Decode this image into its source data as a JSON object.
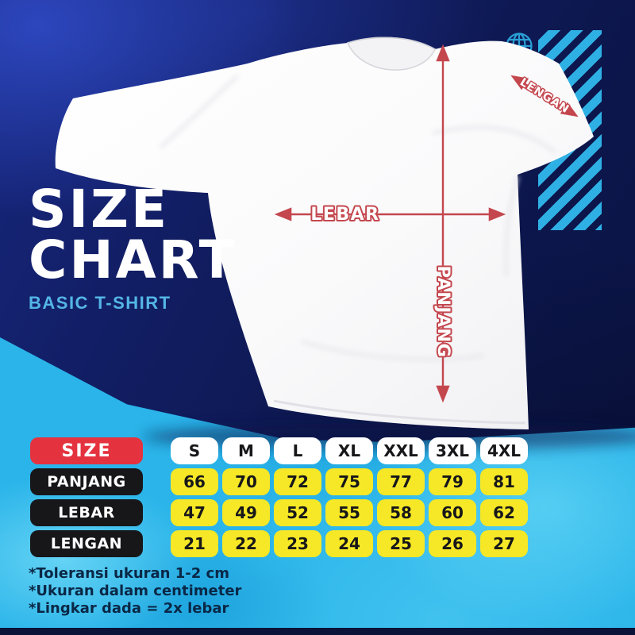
{
  "poster": {
    "title_line1": "SIZE",
    "title_line2": "CHART",
    "subtitle": "BASIC T-SHIRT"
  },
  "measurements": {
    "width_label": "LEBAR",
    "length_label": "PANJANG",
    "sleeve_label": "LENGAN"
  },
  "size_table": {
    "header_label": "SIZE",
    "sizes": [
      "S",
      "M",
      "L",
      "XL",
      "XXL",
      "3XL",
      "4XL"
    ],
    "rows": [
      {
        "label": "PANJANG",
        "values": [
          "66",
          "70",
          "72",
          "75",
          "77",
          "79",
          "81"
        ]
      },
      {
        "label": "LEBAR",
        "values": [
          "47",
          "49",
          "52",
          "55",
          "58",
          "60",
          "62"
        ]
      },
      {
        "label": "LENGAN",
        "values": [
          "21",
          "22",
          "23",
          "24",
          "25",
          "26",
          "27"
        ]
      }
    ]
  },
  "notes": [
    "*Toleransi ukuran 1-2 cm",
    "*Ukuran dalam centimeter",
    "*Lingkar dada = 2x lebar"
  ],
  "icons": [
    {
      "name": "globe-icon",
      "shape": "wireframe globe circle with meridians"
    }
  ],
  "colors": {
    "navy_background": "#0e1950",
    "royal_blue_highlight": "#1b2f8e",
    "cyan_background": "#2ab4e9",
    "stripe_cyan": "#2fb0e4",
    "arrow_red": "#c4474e",
    "size_pill_red": "#e4333f",
    "label_pill_black": "#17171a",
    "value_pill_yellow": "#f6e826",
    "subtitle_blue": "#54b6e6",
    "note_text_navy": "#0a2746"
  },
  "chart_data": {
    "type": "table",
    "title": "SIZE CHART",
    "subtitle": "BASIC T-SHIRT",
    "columns": [
      "SIZE",
      "S",
      "M",
      "L",
      "XL",
      "XXL",
      "3XL",
      "4XL"
    ],
    "rows": [
      [
        "PANJANG",
        66,
        70,
        72,
        75,
        77,
        79,
        81
      ],
      [
        "LEBAR",
        47,
        49,
        52,
        55,
        58,
        60,
        62
      ],
      [
        "LENGAN",
        21,
        22,
        23,
        24,
        25,
        26,
        27
      ]
    ],
    "units": "centimeter",
    "notes": [
      "*Toleransi ukuran 1-2 cm",
      "*Ukuran dalam centimeter",
      "*Lingkar dada = 2x lebar"
    ]
  }
}
